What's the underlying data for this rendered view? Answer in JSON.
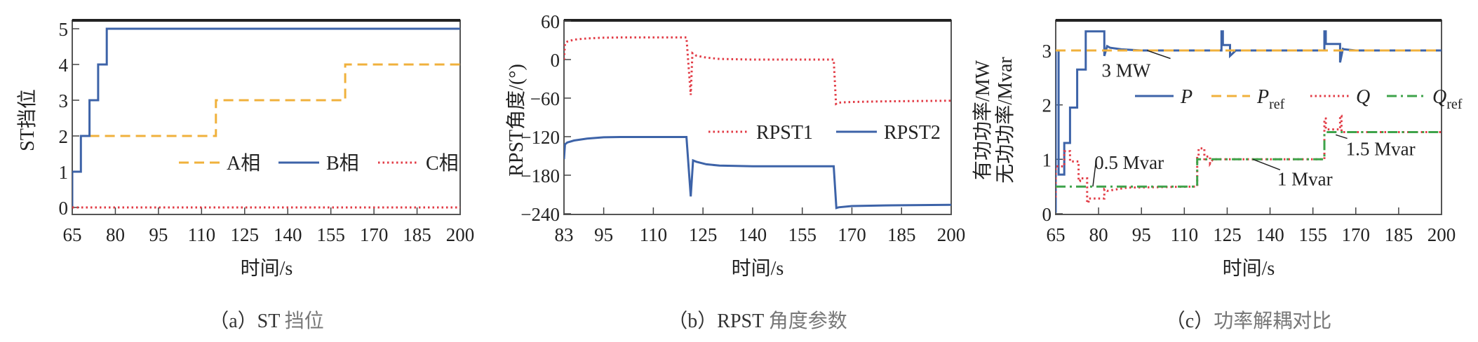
{
  "colors": {
    "blue": "#3d63a8",
    "orange": "#f0b13c",
    "red": "#e23b45",
    "green": "#3ea34a",
    "frame": "#333333"
  },
  "chart_data": [
    {
      "id": "a",
      "type": "line",
      "title": "",
      "caption": {
        "prefix": "（a）ST",
        "suffix": " 挡位"
      },
      "xlabel": "时间/s",
      "ylabel": "ST挡位",
      "xlim": [
        65,
        200
      ],
      "ylim": [
        0,
        5.2
      ],
      "xticks": [
        65,
        80,
        95,
        110,
        125,
        140,
        155,
        170,
        185,
        200
      ],
      "yticks": [
        0,
        1,
        2,
        3,
        4,
        5
      ],
      "grid": false,
      "legend_position": "center-right",
      "series": [
        {
          "name": "A相",
          "style": "dashed",
          "color": "orange",
          "x": [
            71,
            115,
            115,
            160,
            160,
            200
          ],
          "y": [
            2,
            2,
            3,
            3,
            4,
            4
          ]
        },
        {
          "name": "B相",
          "style": "solid",
          "color": "blue",
          "x": [
            65,
            65,
            68,
            68,
            71,
            71,
            74,
            74,
            77,
            77,
            200
          ],
          "y": [
            0,
            1,
            1,
            2,
            2,
            3,
            3,
            4,
            4,
            5,
            5
          ]
        },
        {
          "name": "C相",
          "style": "dotted",
          "color": "red",
          "x": [
            65,
            200
          ],
          "y": [
            0,
            0
          ]
        }
      ]
    },
    {
      "id": "b",
      "type": "line",
      "title": "",
      "caption": {
        "prefix": "（b）RPST",
        "suffix": " 角度参数"
      },
      "xlabel": "时间/s",
      "ylabel": "RPST角度/(°)",
      "xlim": [
        83,
        200
      ],
      "ylim": [
        -240,
        60
      ],
      "xticks": [
        83,
        95,
        110,
        125,
        140,
        155,
        170,
        185,
        200
      ],
      "yticks": [
        60,
        0,
        -60,
        -120,
        -180,
        -240
      ],
      "ytick_labels": [
        "60",
        "0",
        "−60",
        "−120",
        "−180",
        "−240"
      ],
      "grid": false,
      "legend_position": "center-right",
      "series": [
        {
          "name": "RPST1",
          "style": "dotted",
          "color": "red",
          "x": [
            83,
            83.3,
            84,
            86,
            90,
            95,
            100,
            120,
            120.5,
            121.3,
            121.8,
            123,
            126,
            130,
            140,
            164.5,
            165.2,
            166,
            170,
            180,
            200
          ],
          "y": [
            0,
            25,
            28,
            31,
            33,
            34,
            34.5,
            34.5,
            0,
            -55,
            10,
            6,
            3,
            1,
            0,
            0,
            -69,
            -67,
            -66,
            -65,
            -64
          ]
        },
        {
          "name": "RPST2",
          "style": "solid",
          "color": "blue",
          "x": [
            83,
            83.3,
            84,
            86,
            90,
            95,
            100,
            120,
            121.3,
            122,
            123,
            126,
            130,
            140,
            164.5,
            165.3,
            166,
            170,
            180,
            200
          ],
          "y": [
            -155,
            -132,
            -129,
            -126,
            -123,
            -121,
            -120.5,
            -120.5,
            -213,
            -157,
            -159,
            -163,
            -165,
            -166,
            -166,
            -231,
            -230,
            -228,
            -227,
            -226
          ]
        }
      ]
    },
    {
      "id": "c",
      "type": "line",
      "title": "",
      "caption": {
        "prefix": "（c）",
        "suffix": "功率解耦对比"
      },
      "xlabel": "时间/s",
      "ylabel": [
        "有功功率/MW",
        "无功功率/Mvar"
      ],
      "xlim": [
        65,
        200
      ],
      "ylim": [
        0,
        3.55
      ],
      "xticks": [
        65,
        80,
        95,
        110,
        125,
        140,
        155,
        170,
        185,
        200
      ],
      "yticks": [
        0,
        1,
        2,
        3
      ],
      "grid": false,
      "legend_position": "upper-right",
      "annotations": [
        {
          "text": "3 MW",
          "x": 86,
          "y": 2.62,
          "arrow_to": [
            97,
            3.0
          ]
        },
        {
          "text": "0.5 Mvar",
          "x": 80,
          "y": 0.85,
          "arrow_to": [
            78,
            0.5
          ]
        },
        {
          "text": "1 Mvar",
          "x": 144,
          "y": 0.55,
          "arrow_to": [
            134,
            1.0
          ]
        },
        {
          "text": "1.5 Mvar",
          "x": 168,
          "y": 1.1,
          "arrow_to": [
            163,
            1.45
          ]
        }
      ],
      "series": [
        {
          "name": "P",
          "style": "solid",
          "color": "blue",
          "x": [
            65,
            65,
            66,
            66,
            68,
            68,
            70,
            70,
            72.5,
            72.5,
            75.5,
            75.5,
            79,
            79,
            82,
            82,
            83,
            84,
            88,
            95,
            123,
            123,
            123.5,
            123.5,
            126,
            126,
            127,
            128,
            159,
            159,
            159.5,
            159.5,
            164.5,
            164.5,
            165.5,
            166,
            170,
            200
          ],
          "y": [
            0.02,
            3.0,
            3.0,
            0.72,
            0.72,
            1.3,
            1.3,
            1.95,
            1.95,
            2.65,
            2.65,
            3.35,
            3.35,
            3.35,
            3.35,
            2.9,
            3.08,
            3.05,
            3.02,
            3.0,
            3.0,
            3.35,
            3.35,
            3.1,
            3.1,
            2.9,
            2.95,
            3.0,
            3.0,
            3.35,
            3.35,
            3.12,
            3.12,
            2.78,
            3.03,
            3.02,
            3.0,
            3.0
          ]
        },
        {
          "name": "P_ref",
          "label_main": "P",
          "label_sub": "ref",
          "style": "dashed",
          "color": "orange",
          "x": [
            65,
            200
          ],
          "y": [
            3.0,
            3.0
          ]
        },
        {
          "name": "Q",
          "style": "dotted",
          "color": "red",
          "x": [
            65,
            65,
            68,
            68,
            70,
            70,
            70.5,
            70.5,
            73,
            73,
            73.5,
            73.5,
            76,
            76,
            76.5,
            76.5,
            82,
            82,
            83,
            90,
            114.5,
            114.5,
            115,
            115,
            117,
            117,
            117.5,
            117.5,
            119,
            119,
            120,
            125,
            159,
            159,
            159.5,
            159.5,
            164.5,
            164.5,
            165,
            165,
            200
          ],
          "y": [
            0.3,
            0.87,
            0.87,
            1.15,
            1.15,
            0.96,
            0.96,
            0.96,
            0.96,
            0.6,
            0.6,
            0.65,
            0.65,
            0.2,
            0.2,
            0.28,
            0.28,
            0.45,
            0.42,
            0.48,
            0.5,
            1.05,
            1.05,
            1.2,
            1.2,
            0.97,
            0.97,
            1.05,
            1.05,
            0.92,
            1.0,
            1.0,
            1.0,
            1.75,
            1.75,
            1.55,
            1.55,
            1.8,
            1.8,
            1.5,
            1.5
          ]
        },
        {
          "name": "Q_ref",
          "label_main": "Q",
          "label_sub": "ref",
          "style": "dashdot",
          "color": "green",
          "x": [
            65,
            114.5,
            114.5,
            159,
            159,
            200
          ],
          "y": [
            0.5,
            0.5,
            1.0,
            1.0,
            1.5,
            1.5
          ]
        }
      ]
    }
  ]
}
